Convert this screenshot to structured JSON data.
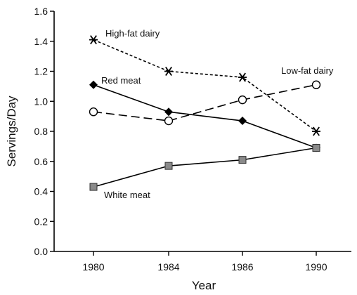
{
  "chart_data": {
    "type": "line",
    "title": "",
    "xlabel": "Year",
    "ylabel": "Servings/Day",
    "categories": [
      "1980",
      "1984",
      "1986",
      "1990"
    ],
    "ylim": [
      0,
      1.6
    ],
    "yticks": [
      "0.0",
      "0.2",
      "0.4",
      "0.6",
      "0.8",
      "1.0",
      "1.2",
      "1.4",
      "1.6"
    ],
    "grid": false,
    "legend": "inline labels",
    "series": [
      {
        "name": "High-fat dairy",
        "values": [
          1.41,
          1.2,
          1.16,
          0.8
        ],
        "marker": "asterisk",
        "dash": "short-dash",
        "color": "#000000"
      },
      {
        "name": "Red meat",
        "values": [
          1.11,
          0.93,
          0.87,
          0.69
        ],
        "marker": "filled-diamond",
        "dash": "solid",
        "color": "#000000"
      },
      {
        "name": "Low-fat dairy",
        "values": [
          0.93,
          0.87,
          1.01,
          1.11
        ],
        "marker": "open-circle",
        "dash": "long-dash",
        "color": "#000000"
      },
      {
        "name": "White meat",
        "values": [
          0.43,
          0.57,
          0.61,
          0.69
        ],
        "marker": "grey-square",
        "dash": "solid",
        "color": "#7a7a7a"
      }
    ]
  }
}
